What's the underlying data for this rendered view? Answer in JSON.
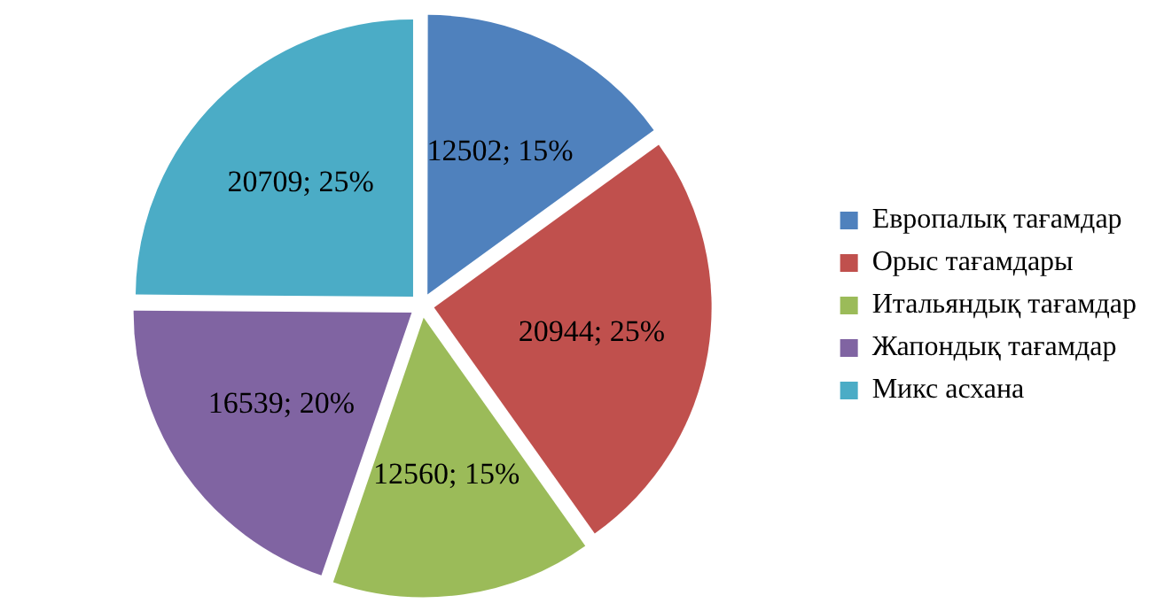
{
  "chart_data": {
    "type": "pie",
    "categories": [
      "Европалық тағамдар",
      "Орыс тағамдары",
      "Итальяндық тағамдар",
      "Жапондық тағамдар",
      "Микс асхана"
    ],
    "values": [
      12502,
      20944,
      12560,
      16539,
      20709
    ],
    "value_labels": [
      "12502; 15%",
      "20944; 25%",
      "12560; 15%",
      "16539; 20%",
      "20709; 25%"
    ],
    "colors": [
      "#4f81bd",
      "#c0504d",
      "#9bbb59",
      "#8064a2",
      "#4bacc6"
    ],
    "legend": "right"
  }
}
